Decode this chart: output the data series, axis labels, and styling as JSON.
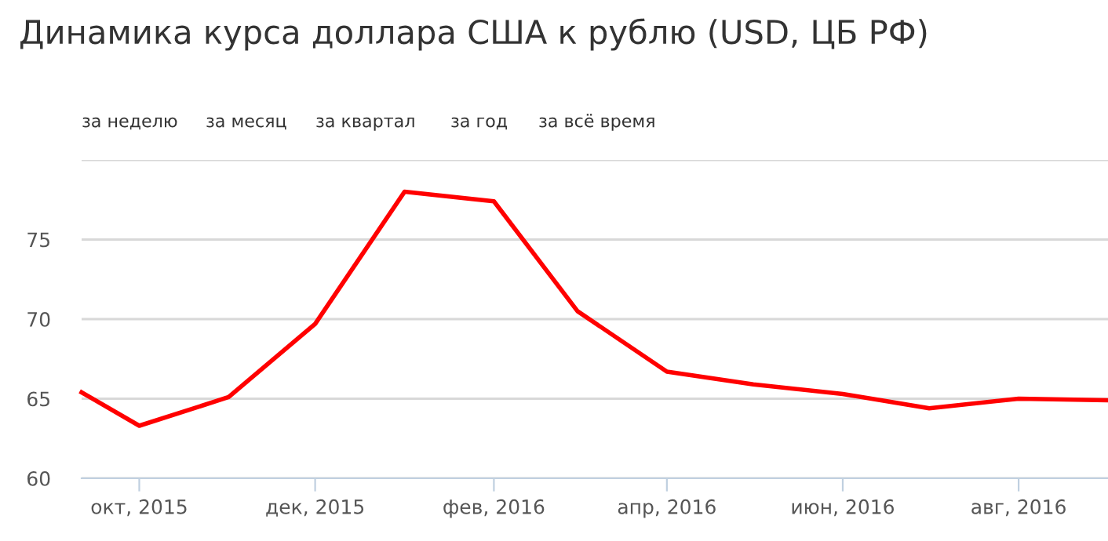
{
  "chart_data": {
    "type": "line",
    "title": "Динамика курса доллара США к рублю (USD, ЦБ РФ)",
    "annotations": [
      "за неделю",
      "за месяц",
      "за квартал",
      "за год",
      "за всё время"
    ],
    "x": [
      "2015-09-11",
      "2015-10-01",
      "2015-11-01",
      "2015-12-01",
      "2016-01-01",
      "2016-02-01",
      "2016-03-01",
      "2016-04-01",
      "2016-05-01",
      "2016-06-01",
      "2016-07-01",
      "2016-08-01",
      "2016-09-01"
    ],
    "series": [
      {
        "color": "#ff0000",
        "values": [
          65.4,
          63.3,
          65.1,
          69.7,
          78.0,
          77.4,
          70.5,
          66.7,
          65.9,
          65.3,
          64.4,
          65.0,
          64.9
        ]
      }
    ],
    "xlim": [
      "2015-09-11",
      "2016-09-01"
    ],
    "xticks": [
      {
        "value": "2015-10-01",
        "label": "окт, 2015"
      },
      {
        "value": "2015-12-01",
        "label": "дек, 2015"
      },
      {
        "value": "2016-02-01",
        "label": "фев, 2016"
      },
      {
        "value": "2016-04-01",
        "label": "апр, 2016"
      },
      {
        "value": "2016-06-01",
        "label": "июн, 2016"
      },
      {
        "value": "2016-08-01",
        "label": "авг, 2016"
      }
    ],
    "ylim": [
      60,
      80
    ],
    "yticks": [
      60,
      65,
      70,
      75,
      {
        "value": 80,
        "label": null
      }
    ],
    "grid": "y",
    "marker": "none",
    "line_style": "solid"
  }
}
